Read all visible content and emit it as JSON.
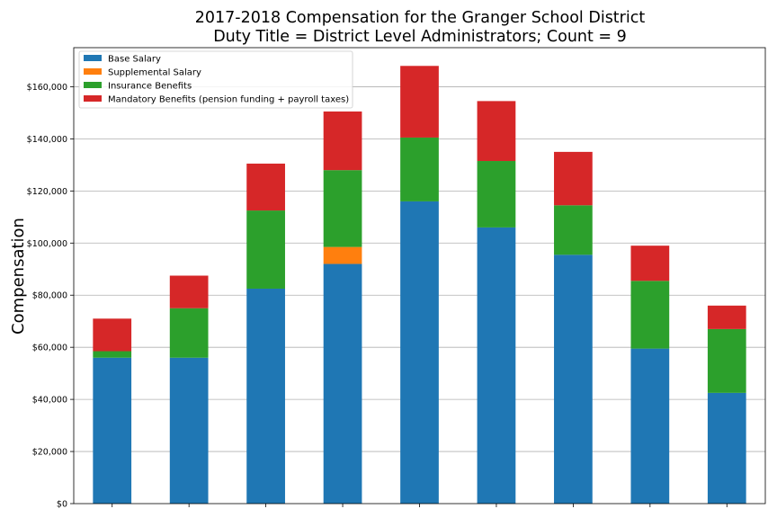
{
  "chart_data": {
    "type": "bar",
    "stacked": true,
    "title": "2017-2018 Compensation for the Granger School District",
    "subtitle": "Duty Title = District Level Administrators; Count = 9",
    "xlabel": "",
    "ylabel": "Compensation",
    "ylim": [
      0,
      175000
    ],
    "yticks": [
      0,
      20000,
      40000,
      60000,
      80000,
      100000,
      120000,
      140000,
      160000
    ],
    "ytick_labels": [
      "$0",
      "$20,000",
      "$40,000",
      "$60,000",
      "$80,000",
      "$100,000",
      "$120,000",
      "$140,000",
      "$160,000"
    ],
    "categories": [
      "",
      "",
      "",
      "",
      "",
      "",
      "",
      "",
      ""
    ],
    "grid": "horizontal",
    "legend_position": "top-left",
    "series": [
      {
        "name": "Base Salary",
        "color": "#1f77b4",
        "values": [
          56000,
          56000,
          82500,
          92000,
          116000,
          106000,
          95500,
          59500,
          42500
        ]
      },
      {
        "name": "Supplemental Salary",
        "color": "#ff7f0e",
        "values": [
          0,
          0,
          0,
          6500,
          0,
          0,
          0,
          0,
          0
        ]
      },
      {
        "name": "Insurance Benefits",
        "color": "#2ca02c",
        "values": [
          2500,
          19000,
          30000,
          29500,
          24500,
          25500,
          19000,
          26000,
          24500
        ]
      },
      {
        "name": "Mandatory Benefits (pension funding + payroll taxes)",
        "color": "#d62728",
        "values": [
          12500,
          12500,
          18000,
          22500,
          27500,
          23000,
          20500,
          13500,
          9000
        ]
      }
    ]
  }
}
